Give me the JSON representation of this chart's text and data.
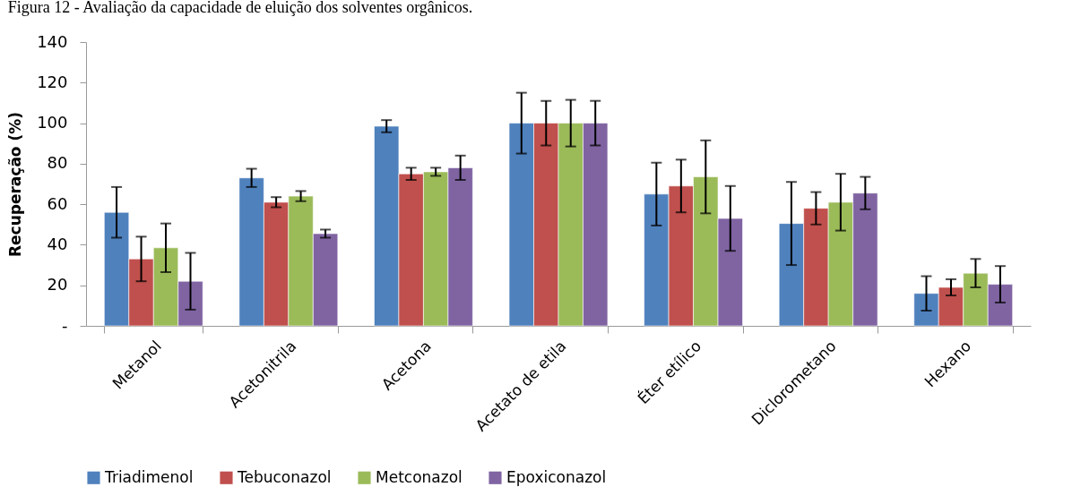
{
  "chart_data": {
    "type": "bar",
    "title": "Figura 12 - Avaliação da capacidade de eluição dos solventes orgânicos.",
    "ylabel": "Recuperação (%)",
    "categories": [
      "Metanol",
      "Acetonitrila",
      "Acetona",
      "Acetato de etila",
      "Éter etílico",
      "Diclorometano",
      "Hexano"
    ],
    "series": [
      {
        "name": "Triadimenol",
        "color": "#4f81bd",
        "values": [
          56,
          73,
          98.5,
          100,
          65,
          50.5,
          16
        ],
        "errors": [
          12.5,
          4.5,
          3,
          15,
          15.5,
          20.5,
          8.5
        ]
      },
      {
        "name": "Tebuconazol",
        "color": "#c0504d",
        "values": [
          33,
          61,
          75,
          100,
          69,
          58,
          19
        ],
        "errors": [
          11,
          2.5,
          3,
          11,
          13,
          8,
          4
        ]
      },
      {
        "name": "Metconazol",
        "color": "#9bbb59",
        "values": [
          38.5,
          64,
          76,
          100,
          73.5,
          61,
          26
        ],
        "errors": [
          12,
          2.5,
          2,
          11.5,
          18,
          14,
          7
        ]
      },
      {
        "name": "Epoxiconazol",
        "color": "#8064a2",
        "values": [
          22,
          45.5,
          78,
          100,
          53,
          65.5,
          20.5
        ],
        "errors": [
          14,
          2,
          6,
          11,
          16,
          8,
          9
        ]
      }
    ],
    "ylim": [
      0,
      140
    ],
    "yticks": [
      {
        "value": 0,
        "label": "-"
      },
      20,
      40,
      60,
      80,
      100,
      120,
      140
    ],
    "grid": false,
    "legend": "bottom"
  }
}
